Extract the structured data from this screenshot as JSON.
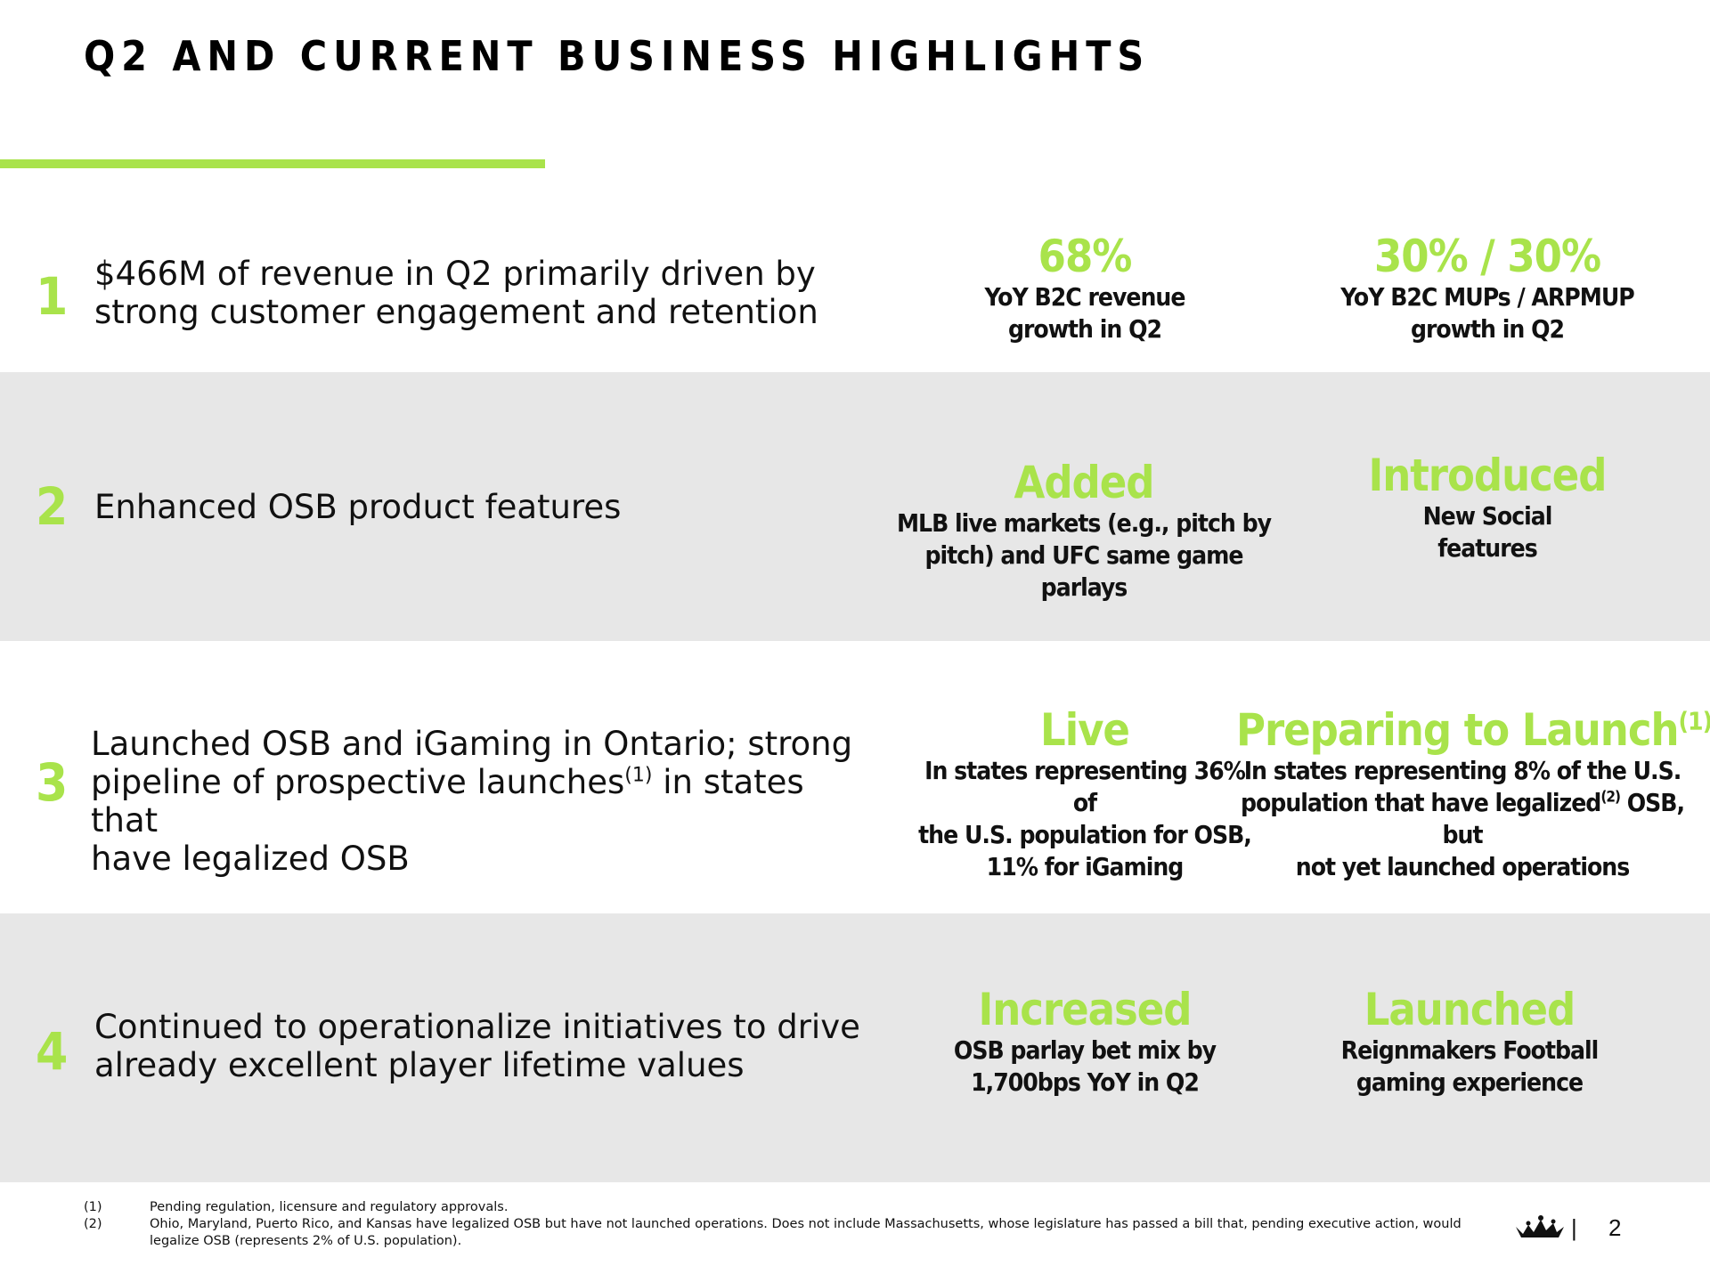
{
  "page": {
    "title": "Q2 AND CURRENT BUSINESS HIGHLIGHTS",
    "page_number": "2",
    "separator": "|"
  },
  "colors": {
    "accent": "#a9e34b",
    "band": "#e7e7e7"
  },
  "rows": [
    {
      "number": "1",
      "description": "$466M of revenue in Q2 primarily driven by strong customer engagement and retention",
      "metrics": [
        {
          "head": "68%",
          "sub": [
            "YoY B2C revenue",
            "growth in Q2"
          ]
        },
        {
          "head": "30% / 30%",
          "sub": [
            "YoY B2C MUPs / ARPMUP",
            "growth in Q2"
          ]
        }
      ]
    },
    {
      "number": "2",
      "description": "Enhanced OSB product features",
      "metrics": [
        {
          "head": "Added",
          "sub": [
            "MLB live markets (e.g., pitch by",
            "pitch) and UFC same game parlays"
          ]
        },
        {
          "head": "Introduced",
          "sub": [
            "New Social",
            "features"
          ]
        }
      ]
    },
    {
      "number": "3",
      "description_lines": [
        "Launched OSB and iGaming in Ontario; strong",
        "pipeline of prospective launches",
        "(1)",
        " in states that",
        "have legalized OSB"
      ],
      "metrics": [
        {
          "head": "Live",
          "sub": [
            "In states representing 36% of",
            "the U.S. population for OSB,",
            "11% for iGaming"
          ]
        },
        {
          "head": "Preparing to Launch",
          "head_sup": "(1)",
          "sub": [
            "In states representing 8% of the U.S.",
            "population that have legalized",
            "(2)",
            " OSB, but",
            "not yet launched operations"
          ]
        }
      ]
    },
    {
      "number": "4",
      "description": "Continued to operationalize initiatives to drive already excellent player lifetime values",
      "metrics": [
        {
          "head": "Increased",
          "sub": [
            "OSB parlay bet mix by",
            "1,700bps YoY in Q2"
          ]
        },
        {
          "head": "Launched",
          "sub": [
            "Reignmakers Football",
            "gaming experience"
          ]
        }
      ]
    }
  ],
  "footnotes": [
    {
      "mark": "(1)",
      "text": "Pending regulation, licensure and regulatory approvals."
    },
    {
      "mark": "(2)",
      "text": "Ohio, Maryland, Puerto Rico, and Kansas have legalized OSB but have not launched operations. Does not include Massachusetts, whose legislature has passed a bill that, pending executive action, would legalize OSB (represents 2% of U.S. population)."
    }
  ],
  "logo": {
    "icon": "crown-logo-icon"
  }
}
